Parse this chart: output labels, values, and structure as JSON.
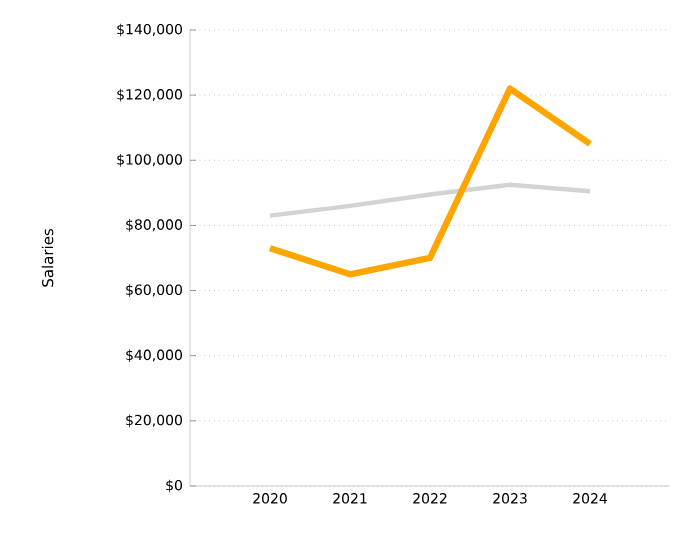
{
  "chart_data": {
    "type": "line",
    "ylabel": "Salaries",
    "categories": [
      "2020",
      "2021",
      "2022",
      "2023",
      "2024"
    ],
    "series": [
      {
        "color": "#d3d3d3",
        "values": [
          83000,
          86000,
          89500,
          92500,
          90500
        ]
      },
      {
        "color": "#ffa500",
        "values": [
          73000,
          65000,
          70000,
          122000,
          105000
        ]
      }
    ],
    "ylim": [
      0,
      140000
    ],
    "yticks": [
      {
        "value": 0,
        "label": "$0"
      },
      {
        "value": 20000,
        "label": "$20,000"
      },
      {
        "value": 40000,
        "label": "$40,000"
      },
      {
        "value": 60000,
        "label": "$60,000"
      },
      {
        "value": 80000,
        "label": "$80,000"
      },
      {
        "value": 100000,
        "label": "$100,000"
      },
      {
        "value": 120000,
        "label": "$120,000"
      },
      {
        "value": 140000,
        "label": "$140,000"
      }
    ],
    "grid": "y",
    "marker": "none",
    "line_style": "solid"
  }
}
